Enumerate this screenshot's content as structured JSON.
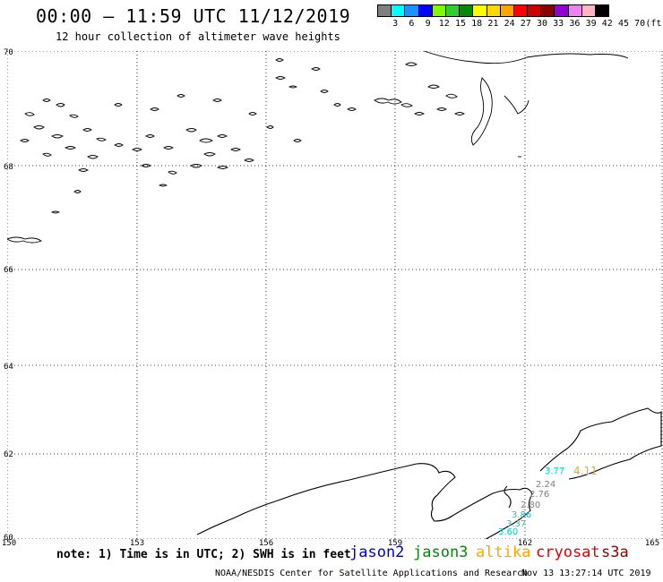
{
  "header": {
    "title": "00:00 — 11:59 UTC 11/12/2019",
    "subtitle": "12 hour collection of altimeter wave heights"
  },
  "scale": {
    "labels": [
      "3",
      "6",
      "9",
      "12",
      "15",
      "18",
      "21",
      "24",
      "27",
      "30",
      "33",
      "36",
      "39",
      "42",
      "45",
      "70",
      "(ft)"
    ],
    "colors": [
      "#7f7f7f",
      "#00ffff",
      "#1e90ff",
      "#0000ff",
      "#7cfc00",
      "#32cd32",
      "#008b00",
      "#ffff00",
      "#ffd700",
      "#ffa500",
      "#ff0000",
      "#cd0000",
      "#8b0000",
      "#9400d3",
      "#ee82ee",
      "#ffb6c1",
      "#000000"
    ]
  },
  "axes": {
    "lat_labels": [
      "70",
      "68",
      "66",
      "64",
      "62",
      "60"
    ],
    "lon_labels": [
      "150",
      "153",
      "156",
      "159",
      "162",
      "165"
    ]
  },
  "observations": [
    {
      "value": "4.11",
      "color": "#ffa500"
    },
    {
      "value": "3.77",
      "color": "#00ced1"
    },
    {
      "value": "2.24",
      "color": "#7f7f7f"
    },
    {
      "value": "2.76",
      "color": "#7f7f7f"
    },
    {
      "value": "2.80",
      "color": "#7f7f7f"
    },
    {
      "value": "3.86",
      "color": "#00ced1"
    },
    {
      "value": "3.37",
      "color": "#00ced1"
    },
    {
      "value": "3.60",
      "color": "#00ced1"
    }
  ],
  "note": "note: 1) Time is in UTC; 2) SWH is in feet",
  "satellites": [
    {
      "name": "jason2",
      "color": "#0000cd"
    },
    {
      "name": "jason3",
      "color": "#008b00"
    },
    {
      "name": "altika",
      "color": "#ffa500"
    },
    {
      "name": "cryosat",
      "color": "#e00000"
    },
    {
      "name": "s3a",
      "color": "#8b0000"
    }
  ],
  "footer": {
    "org": "NOAA/NESDIS Center for Satellite Applications and Research",
    "date": "Nov 13 13:27:14 UTC 2019"
  }
}
